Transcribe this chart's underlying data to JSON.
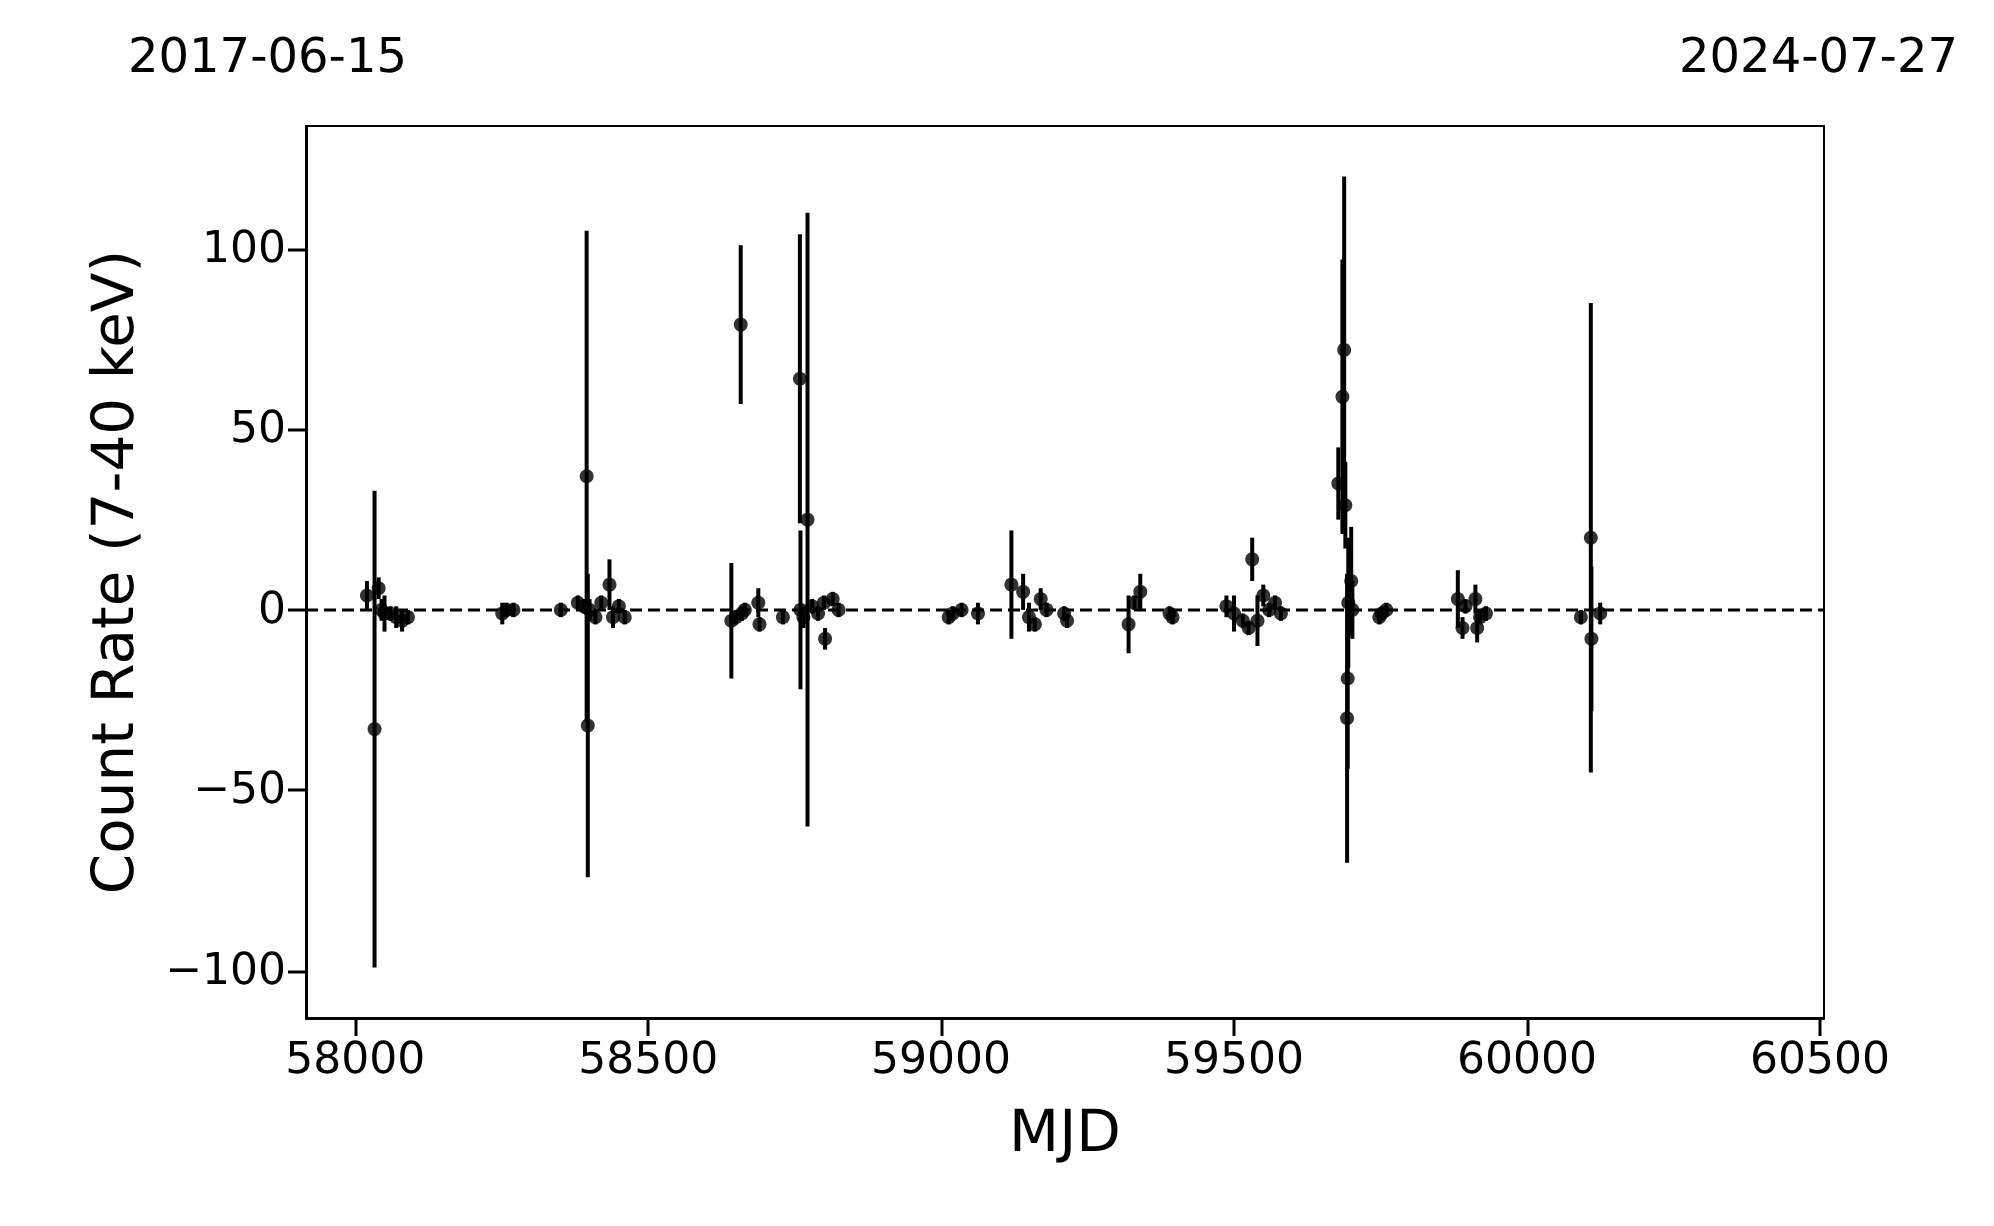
{
  "chart_data": {
    "type": "scatter",
    "xlabel": "MJD",
    "ylabel": "Count Rate (7-40 keV)",
    "annotations": [
      "2017-06-15",
      "2024-07-27"
    ],
    "x": [
      58020,
      58033,
      58040,
      58045,
      58050,
      58060,
      58070,
      58080,
      58090,
      58251,
      58258,
      58270,
      58351,
      58380,
      58390,
      58395,
      58397,
      58400,
      58410,
      58420,
      58434,
      58440,
      58450,
      58460,
      58642,
      58650,
      58658,
      58660,
      58665,
      58688,
      58690,
      58730,
      58759,
      58760,
      58765,
      58772,
      58780,
      58790,
      58800,
      58802,
      58815,
      58825,
      59013,
      59020,
      59035,
      59063,
      59120,
      59140,
      59150,
      59160,
      59170,
      59180,
      59210,
      59215,
      59320,
      59330,
      59340,
      59390,
      59395,
      59487,
      59500,
      59515,
      59525,
      59531,
      59540,
      59550,
      59560,
      59570,
      59580,
      59678,
      59685,
      59688,
      59690,
      59693,
      59694,
      59695,
      59700,
      59702,
      59748,
      59752,
      59760,
      59882,
      59890,
      59895,
      59912,
      59915,
      59920,
      59930,
      60092,
      60109,
      60110,
      60125
    ],
    "series": [
      {
        "color": "#000000",
        "values": [
          4,
          -33,
          6,
          0,
          -1,
          -1,
          -2,
          -3,
          -2,
          -1,
          0,
          0,
          0,
          2,
          1,
          37,
          -32,
          0,
          -2,
          2,
          7,
          -2,
          1,
          -2,
          -3,
          -2,
          79,
          -1,
          0,
          2,
          -4,
          -2,
          64,
          0,
          -2,
          25,
          1,
          -1,
          2,
          -8,
          3,
          0,
          -2,
          -1,
          0,
          -1,
          7,
          5,
          -2,
          -4,
          3,
          0,
          -1,
          -3,
          -4,
          2,
          5,
          -1,
          -2,
          1,
          -1,
          -3,
          -5,
          14,
          -3,
          4,
          0,
          2,
          -1,
          35,
          59,
          72,
          29,
          -30,
          -19,
          2,
          8,
          0,
          -2,
          -1,
          0,
          3,
          -5,
          1,
          3,
          -5,
          -2,
          -1,
          -2,
          20,
          -8,
          -1
        ],
        "errors": [
          4,
          66,
          3,
          3,
          5,
          2,
          3,
          3,
          2,
          3,
          2,
          2,
          2,
          2,
          2,
          68,
          42,
          3,
          2,
          2,
          7,
          3,
          2,
          2,
          16,
          2,
          22,
          2,
          2,
          4,
          2,
          2,
          40,
          22,
          3,
          85,
          2,
          2,
          2,
          3,
          2,
          2,
          2,
          2,
          2,
          3,
          15,
          5,
          4,
          2,
          3,
          2,
          2,
          2,
          8,
          2,
          5,
          2,
          2,
          3,
          5,
          2,
          2,
          6,
          7,
          3,
          2,
          2,
          2,
          10,
          38,
          48,
          12,
          40,
          25,
          18,
          15,
          8,
          2,
          2,
          2,
          8,
          3,
          2,
          4,
          4,
          2,
          2,
          2,
          65,
          20,
          3
        ]
      }
    ],
    "xlim": [
      57916,
      60507
    ],
    "xticks": [
      58000,
      58500,
      59000,
      59500,
      60000,
      60500
    ],
    "ylim": [
      -113,
      134
    ],
    "yticks": [
      {
        "value": -100,
        "label": "−100"
      },
      {
        "value": -50,
        "label": "−50"
      },
      0,
      50,
      100
    ],
    "marker": "circle",
    "grid": false,
    "ref_lines": [
      {
        "axis": "y",
        "value": 0,
        "color": "#000000",
        "line_style": "dashed"
      }
    ]
  }
}
